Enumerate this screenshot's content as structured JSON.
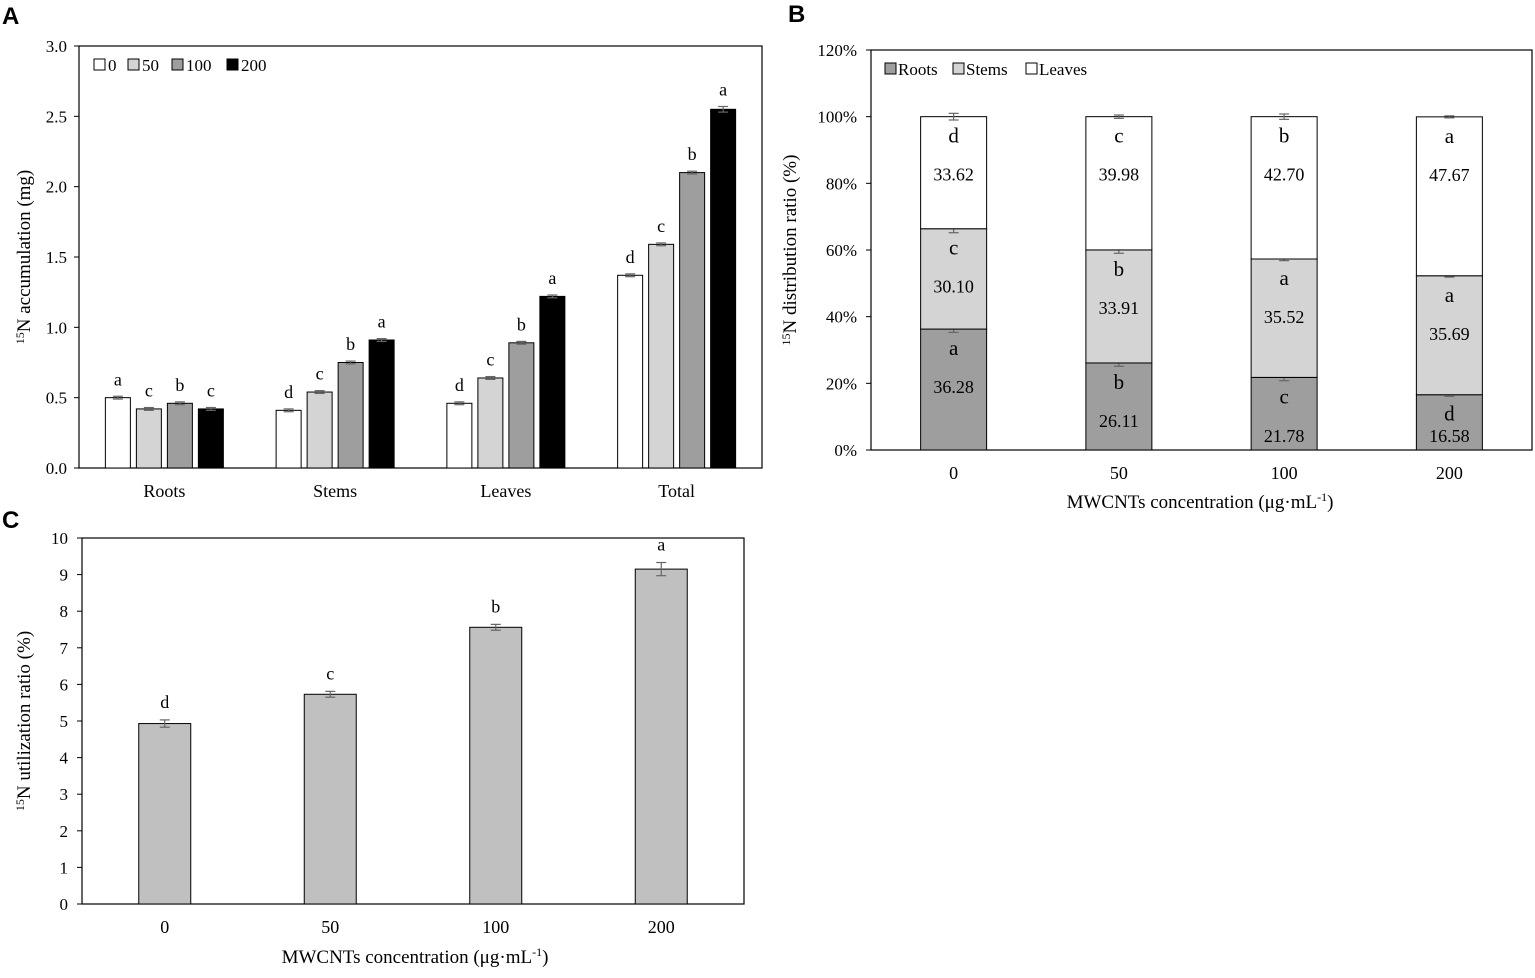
{
  "chart_data": [
    {
      "panel": "A",
      "type": "bar",
      "ylabel_sup": "15",
      "ylabel": "N accumulation (mg)",
      "xlabel": "",
      "ylim": [
        0,
        3.0
      ],
      "yticks": [
        "0.0",
        "0.5",
        "1.0",
        "1.5",
        "2.0",
        "2.5",
        "3.0"
      ],
      "categories": [
        "Roots",
        "Stems",
        "Leaves",
        "Total"
      ],
      "legend_position": "top-left",
      "series": [
        {
          "name": "0",
          "color": "#ffffff",
          "values": [
            0.5,
            0.41,
            0.46,
            1.37
          ],
          "errors": [
            0.01,
            0.01,
            0.01,
            0.01
          ],
          "letters": [
            "a",
            "d",
            "d",
            "d"
          ]
        },
        {
          "name": "50",
          "color": "#d4d4d4",
          "values": [
            0.42,
            0.54,
            0.64,
            1.59
          ],
          "errors": [
            0.01,
            0.01,
            0.01,
            0.01
          ],
          "letters": [
            "c",
            "c",
            "c",
            "c"
          ]
        },
        {
          "name": "100",
          "color": "#9e9e9e",
          "values": [
            0.46,
            0.75,
            0.89,
            2.1
          ],
          "errors": [
            0.01,
            0.01,
            0.01,
            0.01
          ],
          "letters": [
            "b",
            "b",
            "b",
            "b"
          ]
        },
        {
          "name": "200",
          "color": "#000000",
          "values": [
            0.42,
            0.91,
            1.22,
            2.55
          ],
          "errors": [
            0.01,
            0.01,
            0.01,
            0.02
          ],
          "letters": [
            "c",
            "a",
            "a",
            "a"
          ]
        }
      ]
    },
    {
      "panel": "B",
      "type": "bar",
      "stacked": true,
      "ylabel_sup": "15",
      "ylabel": "N distribution ratio (%)",
      "xlabel": "MWCNTs concentration (μg·mL",
      "xlabel_sup": "-1",
      "xlabel_end": ")",
      "ylim": [
        0,
        120
      ],
      "yticks": [
        "0%",
        "20%",
        "40%",
        "60%",
        "80%",
        "100%",
        "120%"
      ],
      "categories": [
        "0",
        "50",
        "100",
        "200"
      ],
      "legend_position": "top-left",
      "series": [
        {
          "name": "Roots",
          "color": "#9e9e9e",
          "values": [
            36.28,
            26.11,
            21.78,
            16.58
          ],
          "labels": [
            "36.28",
            "26.11",
            "21.78",
            "16.58"
          ],
          "letters": [
            "a",
            "b",
            "c",
            "d"
          ],
          "errors": [
            1.0,
            1.0,
            1.0,
            0.5
          ]
        },
        {
          "name": "Stems",
          "color": "#d4d4d4",
          "values": [
            30.1,
            33.91,
            35.52,
            35.69
          ],
          "labels": [
            "30.10",
            "33.91",
            "35.52",
            "35.69"
          ],
          "letters": [
            "c",
            "b",
            "a",
            "a"
          ],
          "errors": [
            1.2,
            1.0,
            0.5,
            0.4
          ]
        },
        {
          "name": "Leaves",
          "color": "#ffffff",
          "values": [
            33.62,
            39.98,
            42.7,
            47.67
          ],
          "labels": [
            "33.62",
            "39.98",
            "42.70",
            "47.67"
          ],
          "letters": [
            "d",
            "c",
            "b",
            "a"
          ],
          "errors": [
            1.0,
            0.5,
            0.8,
            0.3
          ]
        }
      ]
    },
    {
      "panel": "C",
      "type": "bar",
      "ylabel_sup": "15",
      "ylabel": "N utilization ratio (%)",
      "xlabel": "MWCNTs concentration (μg·mL",
      "xlabel_sup": "-1",
      "xlabel_end": ")",
      "ylim": [
        0,
        10
      ],
      "yticks": [
        "0",
        "1",
        "2",
        "3",
        "4",
        "5",
        "6",
        "7",
        "8",
        "9",
        "10"
      ],
      "categories": [
        "0",
        "50",
        "100",
        "200"
      ],
      "series": [
        {
          "name": "utilization",
          "color": "#c0c0c0",
          "values": [
            4.93,
            5.73,
            7.56,
            9.15
          ],
          "errors": [
            0.1,
            0.08,
            0.08,
            0.18
          ],
          "letters": [
            "d",
            "c",
            "b",
            "a"
          ]
        }
      ]
    }
  ]
}
